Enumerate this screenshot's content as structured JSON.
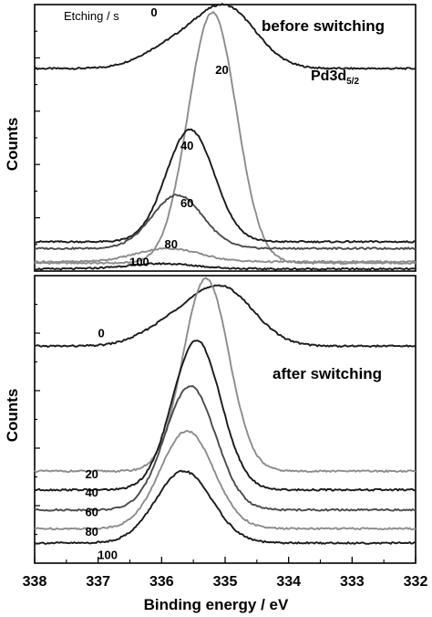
{
  "chart_data": {
    "type": "line",
    "xlabel": "Binding energy / eV",
    "x_ticks": [
      338,
      337,
      336,
      335,
      334,
      333,
      332
    ],
    "xlim": [
      338,
      332
    ],
    "x_reversed": true,
    "colors": {
      "dark": "#1a1a1a",
      "gray": "#8c8c8c",
      "mid": "#4a4a4a"
    },
    "panels": [
      {
        "id": "before",
        "title": "before switching",
        "label": "Pd3d",
        "label_sub": "5/2",
        "legend_title": "Etching / s",
        "ylabel": "Counts",
        "series": [
          {
            "name": "0",
            "color": "dark",
            "base": 0.76,
            "peak_x": 335.0,
            "amp": 0.23,
            "width": 0.48,
            "shoulder_x": 335.9,
            "shoulder_amp": 0.07,
            "shoulder_w": 0.45,
            "label_x": 336.12,
            "label_y": 0.955
          },
          {
            "name": "20",
            "color": "gray",
            "base": 0.03,
            "peak_x": 335.2,
            "amp": 0.94,
            "width": 0.38,
            "label_x": 335.05,
            "label_y": 0.74
          },
          {
            "name": "40",
            "color": "dark",
            "base": 0.11,
            "peak_x": 335.55,
            "amp": 0.42,
            "width": 0.38,
            "label_x": 335.6,
            "label_y": 0.455
          },
          {
            "name": "60",
            "color": "mid",
            "base": 0.085,
            "peak_x": 335.75,
            "amp": 0.2,
            "width": 0.4,
            "label_x": 335.6,
            "label_y": 0.24
          },
          {
            "name": "80",
            "color": "gray",
            "base": 0.035,
            "peak_x": 335.9,
            "amp": 0.05,
            "width": 0.5,
            "label_x": 335.85,
            "label_y": 0.085
          },
          {
            "name": "100",
            "color": "dark",
            "base": 0.008,
            "peak_x": 336.0,
            "amp": 0.02,
            "width": 0.55,
            "label_x": 336.35,
            "label_y": 0.018
          }
        ]
      },
      {
        "id": "after",
        "title": "after switching",
        "ylabel": "Counts",
        "series": [
          {
            "name": "0",
            "color": "dark",
            "base": 0.755,
            "peak_x": 335.05,
            "amp": 0.2,
            "width": 0.5,
            "shoulder_x": 335.9,
            "shoulder_amp": 0.06,
            "shoulder_w": 0.45,
            "label_x": 336.95,
            "label_y": 0.785
          },
          {
            "name": "20",
            "color": "gray",
            "base": 0.32,
            "peak_x": 335.3,
            "amp": 0.67,
            "width": 0.36,
            "label_x": 337.1,
            "label_y": 0.295
          },
          {
            "name": "40",
            "color": "dark",
            "base": 0.255,
            "peak_x": 335.45,
            "amp": 0.52,
            "width": 0.38,
            "label_x": 337.1,
            "label_y": 0.232
          },
          {
            "name": "60",
            "color": "mid",
            "base": 0.185,
            "peak_x": 335.55,
            "amp": 0.43,
            "width": 0.4,
            "label_x": 337.1,
            "label_y": 0.163
          },
          {
            "name": "80",
            "color": "gray",
            "base": 0.12,
            "peak_x": 335.6,
            "amp": 0.34,
            "width": 0.42,
            "label_x": 337.1,
            "label_y": 0.096
          },
          {
            "name": "100",
            "color": "dark",
            "base": 0.07,
            "peak_x": 335.65,
            "amp": 0.25,
            "width": 0.44,
            "label_x": 336.85,
            "label_y": 0.015
          }
        ]
      }
    ]
  }
}
